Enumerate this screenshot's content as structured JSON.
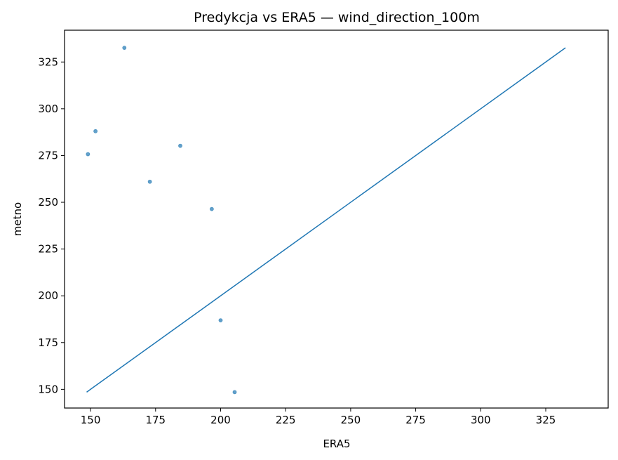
{
  "chart_data": {
    "type": "scatter",
    "title": "Predykcja vs ERA5 — wind_direction_100m",
    "xlabel": "ERA5",
    "ylabel": "metno",
    "xlim": [
      140,
      349
    ],
    "ylim": [
      140,
      342
    ],
    "xticks": [
      150,
      175,
      200,
      225,
      250,
      275,
      300,
      325
    ],
    "yticks": [
      150,
      175,
      200,
      225,
      250,
      275,
      300,
      325
    ],
    "grid": false,
    "series": [
      {
        "kind": "points",
        "color": "#1f77b4",
        "x": [
          149.0,
          151.9,
          163.0,
          172.8,
          184.5,
          196.6,
          200.0,
          205.4
        ],
        "y": [
          275.7,
          288.0,
          332.6,
          261.0,
          280.2,
          246.4,
          186.9,
          148.5
        ]
      },
      {
        "kind": "line",
        "color": "#1f77b4",
        "x": [
          148.5,
          332.6
        ],
        "y": [
          148.5,
          332.6
        ]
      }
    ]
  }
}
